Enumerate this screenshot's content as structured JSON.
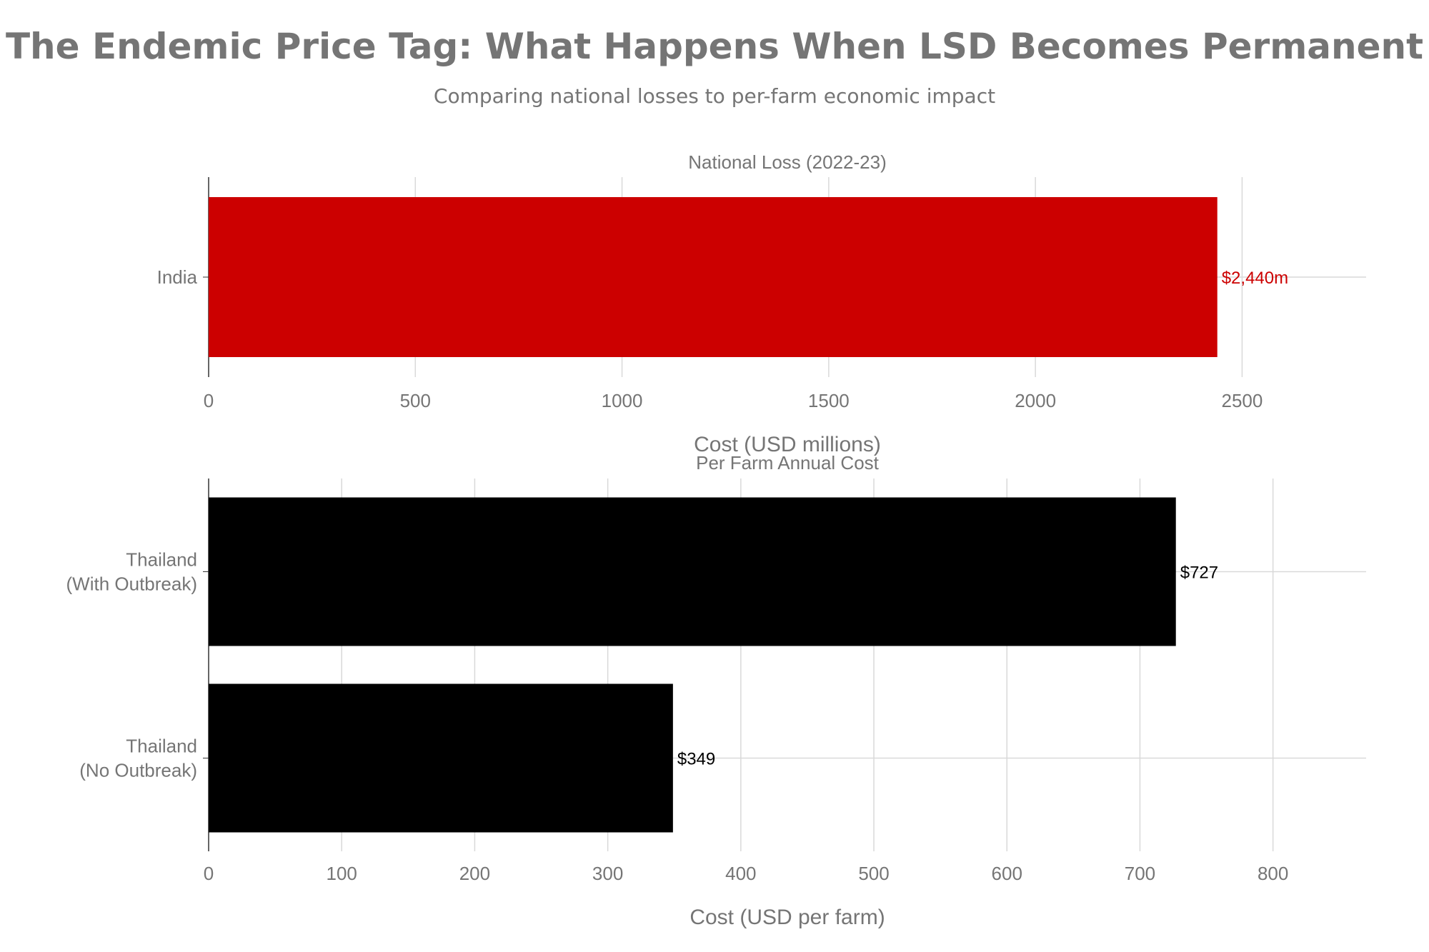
{
  "title": "The Endemic Price Tag: What Happens When LSD Becomes Permanent",
  "subtitle": "Comparing national losses to per-farm economic impact",
  "chart_data": [
    {
      "type": "bar",
      "orientation": "horizontal",
      "title": "National Loss (2022-23)",
      "categories": [
        "India"
      ],
      "values": [
        2440
      ],
      "value_labels": [
        "$2,440m"
      ],
      "xlabel": "Cost (USD millions)",
      "ylabel": "",
      "xlim": [
        0,
        2800
      ],
      "xticks": [
        0,
        500,
        1000,
        1500,
        2000,
        2500
      ],
      "bar_color": "#cc0000",
      "label_color": "#cc0000",
      "grid": true
    },
    {
      "type": "bar",
      "orientation": "horizontal",
      "title": "Per Farm Annual Cost",
      "categories": [
        "Thailand\n(With Outbreak)",
        "Thailand\n(No Outbreak)"
      ],
      "values": [
        727,
        349
      ],
      "value_labels": [
        "$727",
        "$349"
      ],
      "xlabel": "Cost (USD per farm)",
      "ylabel": "",
      "xlim": [
        0,
        870
      ],
      "xticks": [
        0,
        100,
        200,
        300,
        400,
        500,
        600,
        700,
        800
      ],
      "bar_color": "#000000",
      "label_color": "#000000",
      "grid": true
    }
  ]
}
